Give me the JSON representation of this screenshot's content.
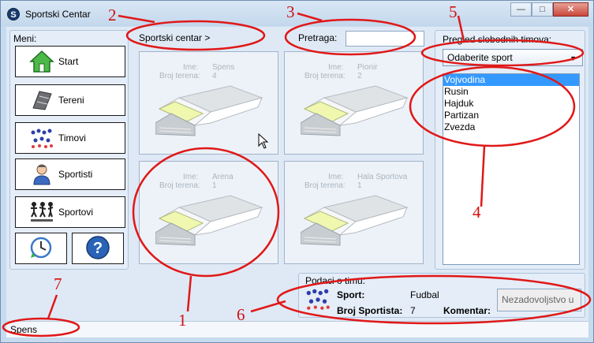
{
  "window": {
    "title": "Sportski Centar",
    "app_icon_glyph": "S"
  },
  "menu": {
    "label": "Meni:",
    "items": [
      {
        "label": "Start",
        "icon": "home-icon"
      },
      {
        "label": "Tereni",
        "icon": "field-icon"
      },
      {
        "label": "Timovi",
        "icon": "team-icon"
      },
      {
        "label": "Sportisti",
        "icon": "athlete-icon"
      },
      {
        "label": "Sportovi",
        "icon": "sports-icon"
      }
    ],
    "bottom_buttons": [
      {
        "icon": "clock-refresh-icon"
      },
      {
        "icon": "help-icon",
        "glyph": "?"
      }
    ]
  },
  "breadcrumb": "Sportski centar >",
  "search": {
    "label": "Pretraga:",
    "value": ""
  },
  "centers": [
    {
      "name_label": "Ime:",
      "name": "Spens",
      "courts_label": "Broj terena:",
      "courts": "4"
    },
    {
      "name_label": "Ime:",
      "name": "Pionir",
      "courts_label": "Broj terena:",
      "courts": "2"
    },
    {
      "name_label": "Ime:",
      "name": "Arena",
      "courts_label": "Broj terena:",
      "courts": "1"
    },
    {
      "name_label": "Ime:",
      "name": "Hala Sportova",
      "courts_label": "Broj terena:",
      "courts": "1"
    }
  ],
  "free_teams": {
    "label": "Pregled slobodnih timova:",
    "select_value": "Odaberite sport",
    "teams": [
      "Vojvodina",
      "Rusin",
      "Hajduk",
      "Partizan",
      "Zvezda"
    ],
    "selected_index": 0
  },
  "team_info": {
    "title": "Podaci o timu:",
    "sport_label": "Sport:",
    "sport_value": "Fudbal",
    "count_label": "Broj Sportista:",
    "count_value": "7",
    "comment_label": "Komentar:",
    "comment_value": "Nezadovoljstvo u"
  },
  "status": {
    "text": "Spens"
  },
  "annotations": [
    "1",
    "2",
    "3",
    "4",
    "5",
    "6",
    "7"
  ],
  "colors": {
    "annotation": "#e01818",
    "selection": "#3399ff",
    "window_frame": "#c7dbef"
  }
}
